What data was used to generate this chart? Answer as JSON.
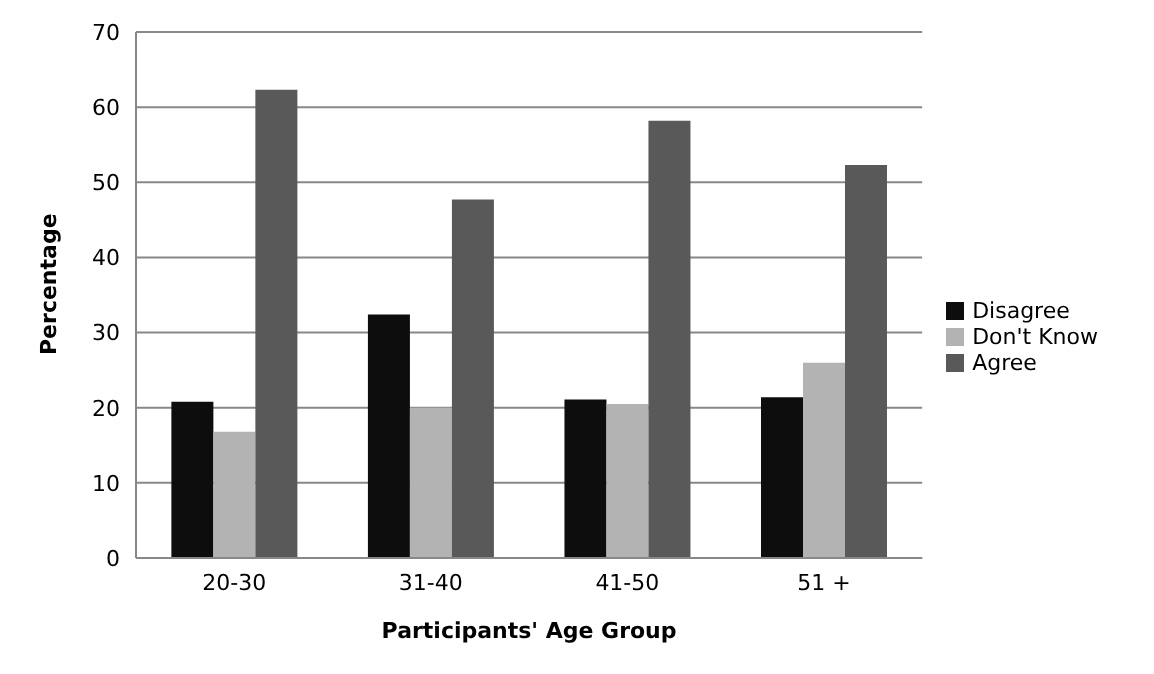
{
  "chart_data": {
    "type": "bar",
    "xlabel": "Participants' Age Group",
    "ylabel": "Percentage",
    "categories": [
      "20-30",
      "31-40",
      "41-50",
      "51 +"
    ],
    "series": [
      {
        "name": "Disagree",
        "color": "#0d0d0d",
        "values": [
          20.8,
          32.4,
          21.1,
          21.4
        ]
      },
      {
        "name": "Don't Know",
        "color": "#b3b3b3",
        "values": [
          16.8,
          20.0,
          20.5,
          26.0
        ]
      },
      {
        "name": "Agree",
        "color": "#595959",
        "values": [
          62.3,
          47.7,
          58.2,
          52.3
        ]
      }
    ],
    "ylim": [
      0,
      70
    ],
    "yticks": [
      0,
      10,
      20,
      30,
      40,
      50,
      60,
      70
    ],
    "grid": "y",
    "legend": "right"
  }
}
